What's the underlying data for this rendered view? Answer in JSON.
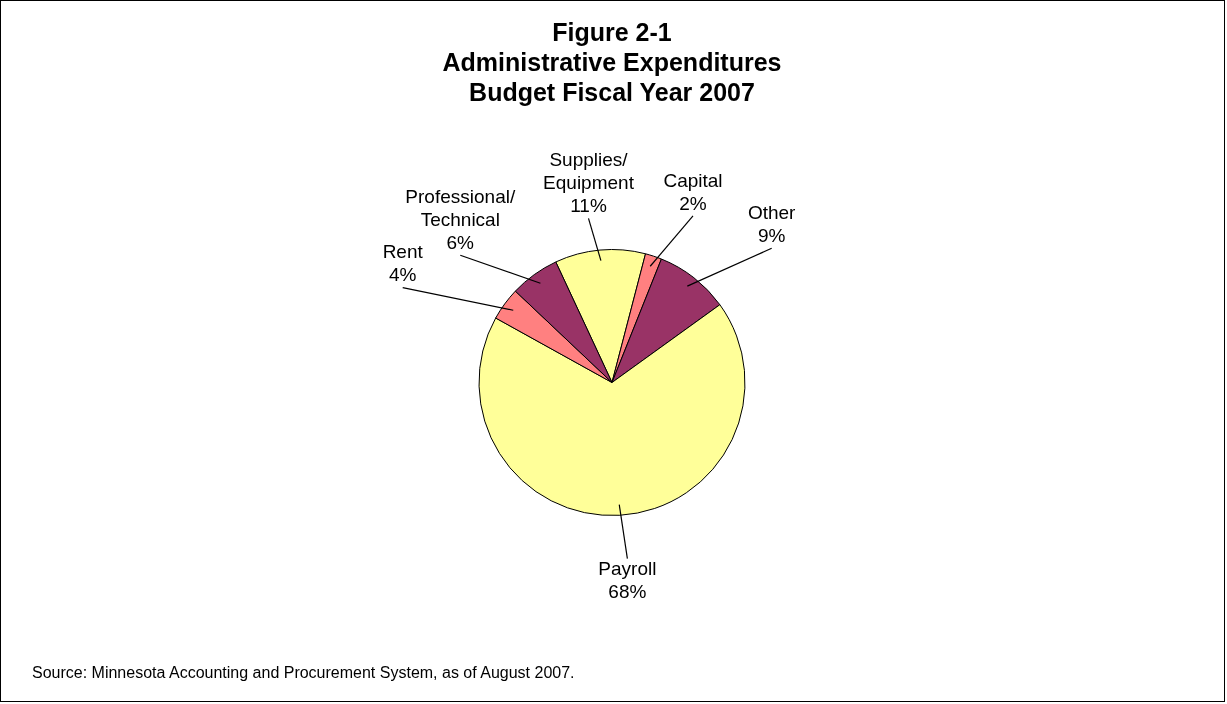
{
  "chart_data": {
    "type": "pie",
    "title": "Figure 2-1\nAdministrative Expenditures\nBudget Fiscal Year 2007",
    "categories": [
      "Supplies/Equipment",
      "Capital",
      "Other",
      "Payroll",
      "Rent",
      "Professional/Technical"
    ],
    "values": [
      11,
      2,
      9,
      68,
      4,
      6
    ],
    "value_labels": [
      "11%",
      "2%",
      "9%",
      "68%",
      "4%",
      "6%"
    ],
    "colors": [
      "#ffff99",
      "#ff8080",
      "#993366",
      "#ffff99",
      "#ff8080",
      "#993366"
    ],
    "legend": false,
    "annotations": [
      "Source:  Minnesota Accounting and Procurement System, as of August 2007."
    ]
  }
}
